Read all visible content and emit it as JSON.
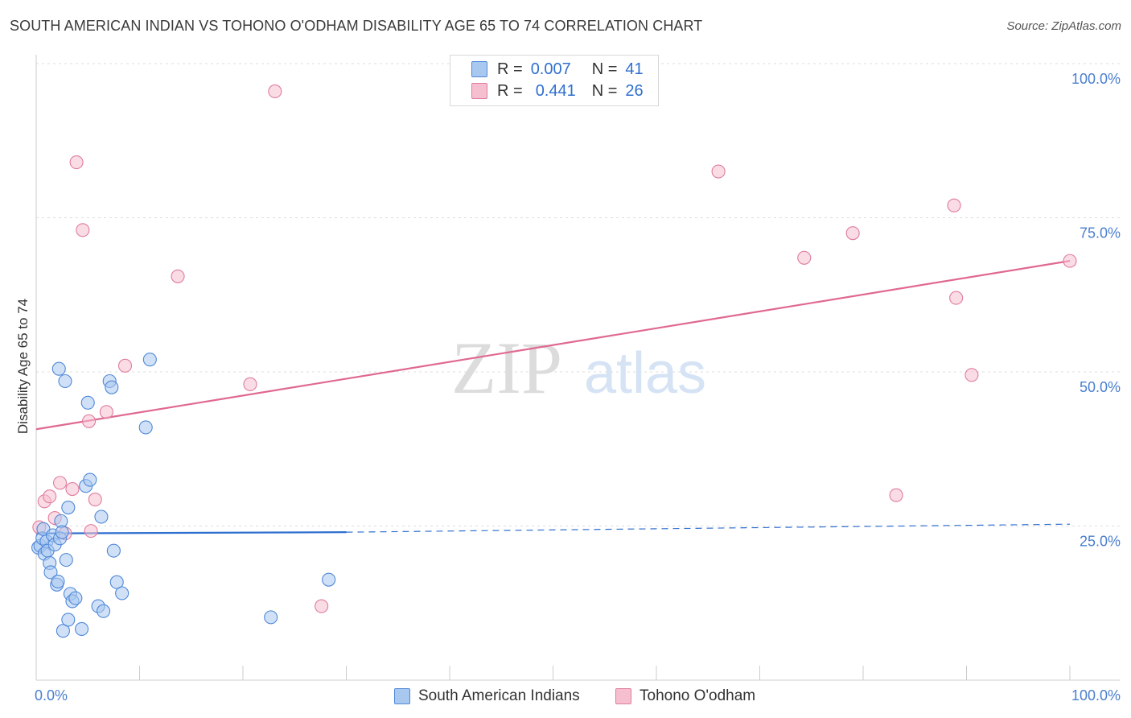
{
  "header": {
    "title": "SOUTH AMERICAN INDIAN VS TOHONO O'ODHAM DISABILITY AGE 65 TO 74 CORRELATION CHART",
    "source": "Source: ZipAtlas.com"
  },
  "legend": {
    "rows": [
      {
        "r_label": "R =",
        "r_value": "0.007",
        "n_label": "N =",
        "n_value": "41"
      },
      {
        "r_label": "R =",
        "r_value": "0.441",
        "n_label": "N =",
        "n_value": "26"
      }
    ]
  },
  "watermark": {
    "part1": "ZIP",
    "part2": "atlas"
  },
  "colors": {
    "blue_fill": "#a9c8f0",
    "blue_stroke": "#4f88d8",
    "blue_line": "#2f6fcf",
    "pink_fill": "#f6bfd0",
    "pink_stroke": "#e07c9e",
    "pink_line": "#e0698f",
    "grid": "#dddddd",
    "axis_text": "#4a7fcf"
  },
  "chart_data": {
    "type": "scatter",
    "title": "SOUTH AMERICAN INDIAN VS TOHONO O'ODHAM DISABILITY AGE 65 TO 74 CORRELATION CHART",
    "xlabel": "",
    "ylabel": "Disability Age 65 to 74",
    "xlim": [
      0,
      100
    ],
    "ylim": [
      0,
      100
    ],
    "x_tick_labels": [
      "0.0%",
      "100.0%"
    ],
    "y_ticks": [
      25,
      50,
      75,
      100
    ],
    "y_tick_labels": [
      "25.0%",
      "50.0%",
      "75.0%",
      "100.0%"
    ],
    "grid": true,
    "series": [
      {
        "name": "South American Indians",
        "color": "#4f88d8",
        "r": 0.007,
        "n": 41,
        "points": [
          [
            0.2,
            21.5
          ],
          [
            0.4,
            21.8
          ],
          [
            0.6,
            23.0
          ],
          [
            0.7,
            24.5
          ],
          [
            0.8,
            20.5
          ],
          [
            1.0,
            22.5
          ],
          [
            1.1,
            21.0
          ],
          [
            1.3,
            19.0
          ],
          [
            1.4,
            17.5
          ],
          [
            1.6,
            23.5
          ],
          [
            1.8,
            22.0
          ],
          [
            2.0,
            15.5
          ],
          [
            2.1,
            16.0
          ],
          [
            2.2,
            50.5
          ],
          [
            2.3,
            23.0
          ],
          [
            2.4,
            25.8
          ],
          [
            2.5,
            24.0
          ],
          [
            2.6,
            8.0
          ],
          [
            2.8,
            48.5
          ],
          [
            2.9,
            19.5
          ],
          [
            3.1,
            9.8
          ],
          [
            3.1,
            28.0
          ],
          [
            3.3,
            14.0
          ],
          [
            3.5,
            12.8
          ],
          [
            3.8,
            13.3
          ],
          [
            4.4,
            8.3
          ],
          [
            4.8,
            31.5
          ],
          [
            5.0,
            45.0
          ],
          [
            5.2,
            32.5
          ],
          [
            6.0,
            12.0
          ],
          [
            6.3,
            26.5
          ],
          [
            6.5,
            11.2
          ],
          [
            7.1,
            48.5
          ],
          [
            7.3,
            47.5
          ],
          [
            7.5,
            21.0
          ],
          [
            7.8,
            15.9
          ],
          [
            8.3,
            14.1
          ],
          [
            10.6,
            41.0
          ],
          [
            11.0,
            52.0
          ],
          [
            22.7,
            10.2
          ],
          [
            28.3,
            16.3
          ]
        ],
        "trend": {
          "x": [
            0,
            30
          ],
          "y": [
            23.8,
            24.0
          ]
        },
        "trend_dashed": {
          "x": [
            30,
            100
          ],
          "y": [
            24.0,
            25.3
          ]
        }
      },
      {
        "name": "Tohono O'odham",
        "color": "#e07c9e",
        "r": 0.441,
        "n": 26,
        "points": [
          [
            0.3,
            24.8
          ],
          [
            0.8,
            29.0
          ],
          [
            1.3,
            29.8
          ],
          [
            1.8,
            26.3
          ],
          [
            2.3,
            32.0
          ],
          [
            2.8,
            23.8
          ],
          [
            3.5,
            31.0
          ],
          [
            3.9,
            84.0
          ],
          [
            4.5,
            73.0
          ],
          [
            5.1,
            42.0
          ],
          [
            5.3,
            24.2
          ],
          [
            5.7,
            29.3
          ],
          [
            6.8,
            43.5
          ],
          [
            8.6,
            51.0
          ],
          [
            13.7,
            65.5
          ],
          [
            20.7,
            48.0
          ],
          [
            23.1,
            95.5
          ],
          [
            27.6,
            12.0
          ],
          [
            66.0,
            82.5
          ],
          [
            74.3,
            68.5
          ],
          [
            79.0,
            72.5
          ],
          [
            83.2,
            30.0
          ],
          [
            88.8,
            77.0
          ],
          [
            89.0,
            62.0
          ],
          [
            90.5,
            49.5
          ],
          [
            100.0,
            68.0
          ]
        ],
        "trend": {
          "x": [
            0,
            100
          ],
          "y": [
            40.7,
            68.0
          ]
        }
      }
    ]
  },
  "bottom_legend": [
    {
      "label": "South American Indians"
    },
    {
      "label": "Tohono O'odham"
    }
  ]
}
